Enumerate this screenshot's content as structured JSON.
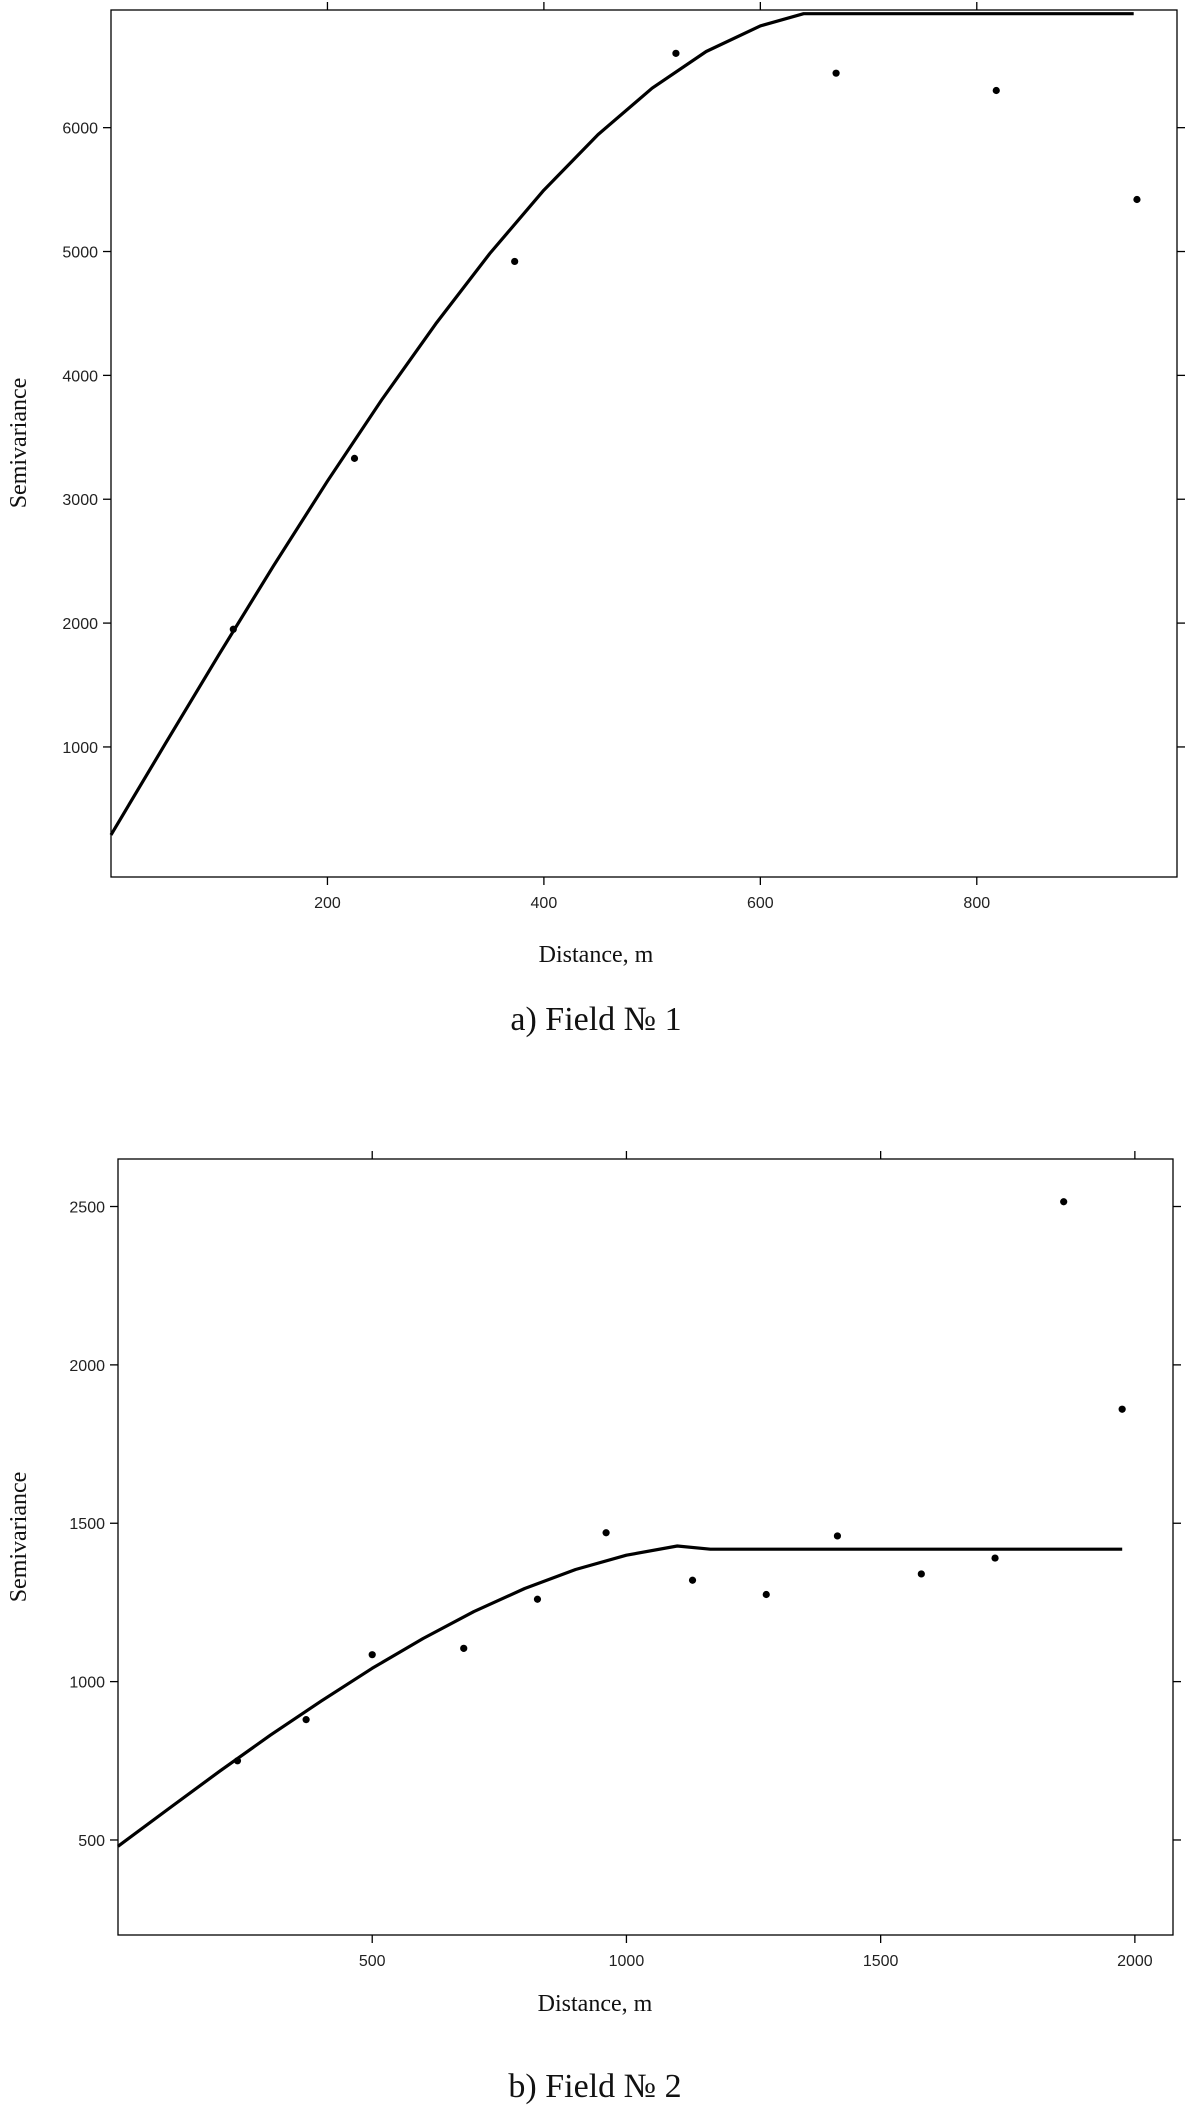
{
  "chart_data": [
    {
      "type": "scatter",
      "caption": "a) Field № 1",
      "xlabel": "Distance, m",
      "ylabel": "Semivariance",
      "xlim": [
        0,
        985
      ],
      "ylim": [
        -50,
        6950
      ],
      "x_ticks": [
        200,
        400,
        600,
        800
      ],
      "y_ticks": [
        1000,
        2000,
        3000,
        4000,
        5000,
        6000
      ],
      "x_tick_labels": [
        "200",
        "400",
        "600",
        "800"
      ],
      "y_tick_labels": [
        "1000",
        "2000",
        "3000",
        "4000",
        "5000",
        "6000"
      ],
      "grid": false,
      "series": [
        {
          "type": "scatter",
          "x": [
            113,
            225,
            373,
            522,
            670,
            818,
            948
          ],
          "y": [
            1950,
            3330,
            4920,
            6600,
            6440,
            6300,
            5420
          ]
        },
        {
          "type": "line",
          "model": "spherical",
          "x": [
            0,
            50,
            100,
            150,
            200,
            250,
            300,
            350,
            400,
            450,
            500,
            550,
            600,
            640,
            660,
            700,
            750,
            800,
            850,
            900,
            945
          ],
          "y": [
            290,
            1023,
            1749,
            2459,
            3146,
            3801,
            4416,
            4984,
            5496,
            5944,
            6319,
            6615,
            6822,
            6920,
            6920,
            6920,
            6920,
            6920,
            6920,
            6920,
            6920
          ]
        }
      ]
    },
    {
      "type": "scatter",
      "caption": "b) Field № 2",
      "xlabel": "Distance, m",
      "ylabel": "Semivariance",
      "xlim": [
        0,
        2075
      ],
      "ylim": [
        200,
        2650
      ],
      "x_ticks": [
        500,
        1000,
        1500,
        2000
      ],
      "y_ticks": [
        500,
        1000,
        1500,
        2000,
        2500
      ],
      "x_tick_labels": [
        "500",
        "1000",
        "1500",
        "2000"
      ],
      "y_tick_labels": [
        "500",
        "1000",
        "1500",
        "2000",
        "2500"
      ],
      "grid": false,
      "series": [
        {
          "type": "scatter",
          "x": [
            235,
            370,
            500,
            680,
            825,
            960,
            1130,
            1275,
            1415,
            1580,
            1725,
            1860,
            1975
          ],
          "y": [
            750,
            880,
            1085,
            1105,
            1260,
            1470,
            1320,
            1275,
            1460,
            1340,
            1390,
            2515,
            1860
          ]
        },
        {
          "type": "line",
          "model": "spherical",
          "x": [
            0,
            100,
            200,
            300,
            400,
            500,
            600,
            700,
            800,
            900,
            1000,
            1100,
            1165,
            1250,
            1400,
            1600,
            1800,
            1975
          ],
          "y": [
            480,
            599,
            717,
            831,
            939,
            1042,
            1136,
            1221,
            1294,
            1354,
            1399,
            1428,
            1418,
            1418,
            1418,
            1418,
            1418,
            1418
          ]
        }
      ]
    }
  ]
}
